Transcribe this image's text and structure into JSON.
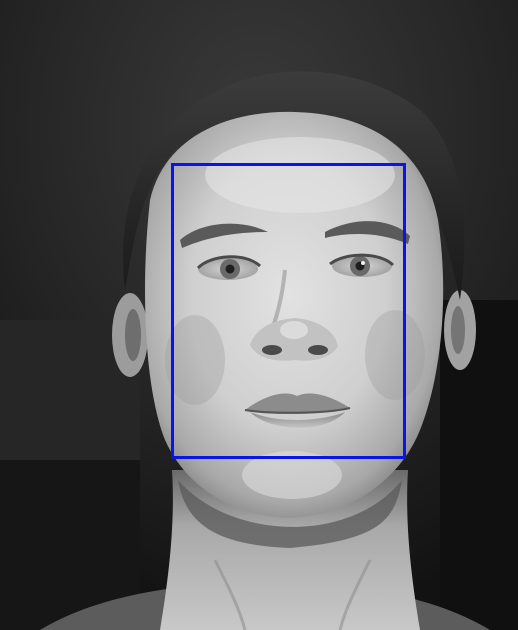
{
  "image": {
    "description_colors": {
      "background_dark": "#141414",
      "wall_mid": "#2b2b2b",
      "hair": "#232323",
      "skin_light": "#d8d8d8",
      "skin_mid": "#b4b4b4",
      "skin_shadow": "#7a7a7a"
    }
  },
  "detection": {
    "box_color": "#0a14e6"
  }
}
